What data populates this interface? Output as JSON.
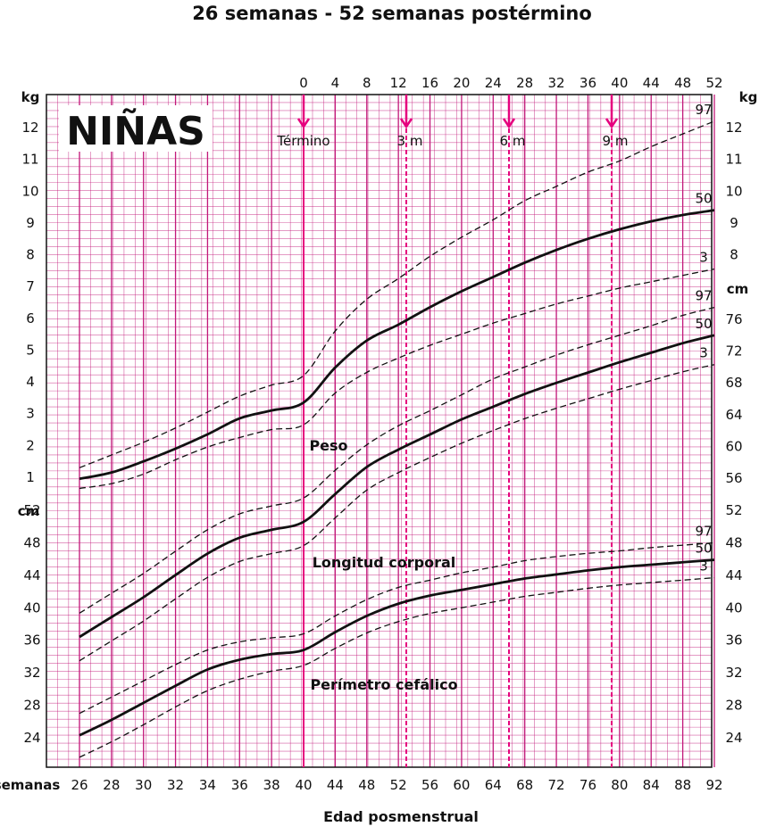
{
  "title": "26 semanas - 52 semanas postérmino",
  "colors": {
    "grid": "#c2187a",
    "marker": "#e6007e",
    "curve": "#111111"
  },
  "chart_data": {
    "type": "line",
    "title": "26 semanas - 52 semanas postérmino",
    "subtitle": "NIÑAS",
    "xlabel": "Edad posmenstrual",
    "x_unit_label": "semanas",
    "x_bottom_ticks": [
      "26",
      "28",
      "30",
      "32",
      "34",
      "36",
      "38",
      "40",
      "44",
      "48",
      "52",
      "56",
      "60",
      "64",
      "68",
      "72",
      "76",
      "80",
      "84",
      "88",
      "92"
    ],
    "x_top_ticks": [
      "0",
      "4",
      "8",
      "12",
      "16",
      "20",
      "24",
      "28",
      "32",
      "36",
      "40",
      "44",
      "48",
      "52"
    ],
    "markers": [
      {
        "label": "Término",
        "week": 40
      },
      {
        "label": "3 m",
        "week": 53
      },
      {
        "label": "6 m",
        "week": 66
      },
      {
        "label": "9 m",
        "week": 79
      }
    ],
    "weight_axis": {
      "unit": "kg",
      "ticks": [
        "1",
        "2",
        "3",
        "4",
        "5",
        "6",
        "7",
        "8",
        "9",
        "10",
        "11",
        "12"
      ]
    },
    "length_axis": {
      "unit": "cm",
      "ticks": [
        "56",
        "60",
        "64",
        "68",
        "72",
        "76"
      ]
    },
    "small_axis": {
      "unit": "cm",
      "ticks": [
        "24",
        "28",
        "32",
        "36",
        "40",
        "44",
        "48",
        "52"
      ]
    },
    "right_small_ticks": [
      "24",
      "28",
      "32",
      "36",
      "40",
      "44",
      "48",
      "52",
      "56",
      "60",
      "64",
      "68",
      "72",
      "76"
    ],
    "x_weeks": [
      26,
      28,
      30,
      32,
      34,
      36,
      38,
      40,
      44,
      48,
      52,
      56,
      60,
      64,
      68,
      72,
      76,
      80,
      84,
      88,
      92
    ],
    "groups": [
      {
        "label": "Peso",
        "unit": "kg",
        "series": [
          {
            "name": "97",
            "values": [
              1.3,
              1.7,
              2.1,
              2.55,
              3.05,
              3.55,
              3.9,
              4.2,
              5.6,
              6.6,
              7.25,
              7.95,
              8.55,
              9.1,
              9.7,
              10.15,
              10.6,
              10.95,
              11.4,
              11.8,
              12.2
            ]
          },
          {
            "name": "50",
            "values": [
              0.95,
              1.15,
              1.5,
              1.9,
              2.35,
              2.85,
              3.1,
              3.35,
              4.45,
              5.3,
              5.8,
              6.35,
              6.85,
              7.3,
              7.75,
              8.15,
              8.5,
              8.8,
              9.05,
              9.25,
              9.4
            ]
          },
          {
            "name": "3",
            "values": [
              0.65,
              0.8,
              1.1,
              1.55,
              1.95,
              2.25,
              2.5,
              2.65,
              3.65,
              4.3,
              4.75,
              5.15,
              5.5,
              5.85,
              6.15,
              6.45,
              6.7,
              6.95,
              7.15,
              7.35,
              7.55
            ]
          }
        ]
      },
      {
        "label": "Longitud corporal",
        "unit": "cm",
        "series": [
          {
            "name": "97",
            "values": [
              39.0,
              41.5,
              44.0,
              46.8,
              49.5,
              51.5,
              52.5,
              53.5,
              57.0,
              60.2,
              62.6,
              64.5,
              66.5,
              68.5,
              70.0,
              71.5,
              72.8,
              74.0,
              75.2,
              76.5,
              77.5
            ]
          },
          {
            "name": "50",
            "values": [
              36.0,
              38.5,
              41.0,
              43.8,
              46.5,
              48.5,
              49.5,
              50.5,
              54.0,
              57.4,
              59.6,
              61.5,
              63.4,
              65.0,
              66.6,
              68.0,
              69.3,
              70.6,
              71.8,
              73.0,
              74.0
            ]
          },
          {
            "name": "3",
            "values": [
              33.0,
              35.5,
              38.0,
              40.8,
              43.5,
              45.5,
              46.5,
              47.5,
              51.0,
              54.5,
              56.7,
              58.6,
              60.4,
              62.0,
              63.5,
              64.8,
              66.0,
              67.2,
              68.3,
              69.4,
              70.3
            ]
          }
        ]
      },
      {
        "label": "Perímetro cefálico",
        "unit": "cm",
        "series": [
          {
            "name": "97",
            "values": [
              27.0,
              29.0,
              31.0,
              33.0,
              34.8,
              35.8,
              36.3,
              36.8,
              39.0,
              41.0,
              42.5,
              43.4,
              44.3,
              45.0,
              45.8,
              46.3,
              46.7,
              47.0,
              47.4,
              47.7,
              48.0
            ]
          },
          {
            "name": "50",
            "values": [
              24.3,
              26.2,
              28.3,
              30.4,
              32.4,
              33.6,
              34.3,
              34.8,
              37.0,
              39.0,
              40.5,
              41.5,
              42.2,
              42.9,
              43.6,
              44.1,
              44.6,
              45.0,
              45.3,
              45.6,
              45.9
            ]
          },
          {
            "name": "3",
            "values": [
              21.6,
              23.5,
              25.6,
              27.8,
              29.8,
              31.2,
              32.2,
              32.9,
              35.0,
              36.9,
              38.3,
              39.3,
              40.0,
              40.7,
              41.4,
              41.9,
              42.4,
              42.8,
              43.1,
              43.4,
              43.7
            ]
          }
        ]
      }
    ],
    "group_labels": [
      "Peso",
      "Longitud corporal",
      "Perímetro cefálico"
    ],
    "grid": true,
    "legend": "none"
  }
}
